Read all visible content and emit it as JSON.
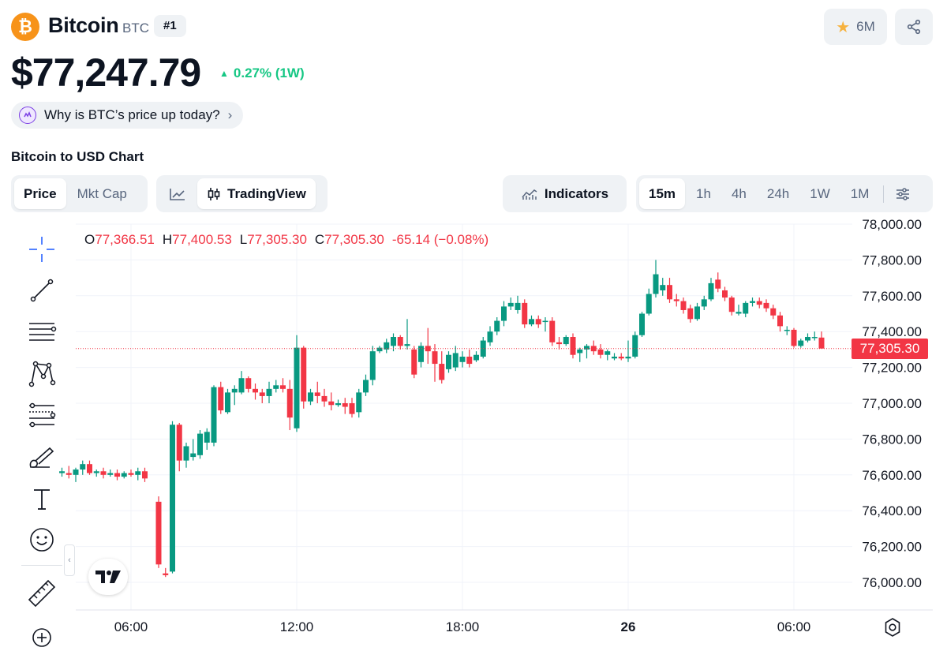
{
  "header": {
    "logo_glyph": "₿",
    "name": "Bitcoin",
    "symbol": "BTC",
    "rank": "#1",
    "watchlist_count": "6M",
    "price": "$77,247.79",
    "change": "0.27% (1W)",
    "why_label": "Why is BTC’s price up today?",
    "chart_heading": "Bitcoin to USD Chart"
  },
  "tabs": {
    "price": "Price",
    "mkt_cap": "Mkt Cap",
    "tradingview": "TradingView",
    "indicators": "Indicators",
    "ranges": [
      "15m",
      "1h",
      "4h",
      "24h",
      "1W",
      "1M"
    ],
    "active_range": "15m"
  },
  "tools": [
    "crosshair-icon",
    "trend-line-icon",
    "fib-lines-icon",
    "pattern-icon",
    "forecast-icon",
    "brush-icon",
    "text-icon",
    "emoji-icon",
    "ruler-icon",
    "zoom-in-icon"
  ],
  "ohlc": {
    "o_label": "O",
    "o": "77,366.51",
    "h_label": "H",
    "h": "77,400.53",
    "l_label": "L",
    "l": "77,305.30",
    "c_label": "C",
    "c": "77,305.30",
    "delta": "-65.14 (−0.08%)"
  },
  "last_price_tag": "77,305.30",
  "colors": {
    "up": "#089981",
    "down": "#f23645",
    "accent": "#16c784",
    "brand": "#f7931a"
  },
  "chart_data": {
    "type": "candlestick",
    "interval": "15m",
    "ylim": [
      75800,
      78000
    ],
    "y_ticks": [
      78000,
      77800,
      77600,
      77400,
      77200,
      77000,
      76800,
      76600,
      76400,
      76200,
      76000
    ],
    "y_tick_labels": [
      "78,000.00",
      "77,800.00",
      "77,600.00",
      "77,400.00",
      "77,200.00",
      "77,000.00",
      "76,800.00",
      "76,600.00",
      "76,400.00",
      "76,200.00",
      "76,000.00"
    ],
    "x_ticks": [
      "06:00",
      "12:00",
      "18:00",
      "26",
      "06:00"
    ],
    "x_tick_hours": [
      6,
      12,
      18,
      24,
      30
    ],
    "x_tick_bold": [
      false,
      false,
      false,
      true,
      false
    ],
    "grid": true,
    "last_price": 77305.3,
    "candles": [
      [
        3.5,
        76610,
        76640,
        76590,
        76620
      ],
      [
        3.75,
        76610,
        76650,
        76580,
        76600
      ],
      [
        4.0,
        76600,
        76640,
        76560,
        76630
      ],
      [
        4.25,
        76630,
        76680,
        76600,
        76660
      ],
      [
        4.5,
        76660,
        76680,
        76600,
        76610
      ],
      [
        4.75,
        76610,
        76630,
        76590,
        76620
      ],
      [
        5.0,
        76620,
        76640,
        76580,
        76600
      ],
      [
        5.25,
        76600,
        76630,
        76590,
        76610
      ],
      [
        5.5,
        76610,
        76630,
        76570,
        76590
      ],
      [
        5.75,
        76590,
        76620,
        76580,
        76610
      ],
      [
        6.0,
        76610,
        76630,
        76590,
        76600
      ],
      [
        6.25,
        76600,
        76640,
        76570,
        76620
      ],
      [
        6.5,
        76620,
        76640,
        76560,
        76580
      ],
      [
        7.0,
        76450,
        76480,
        76080,
        76100
      ],
      [
        7.25,
        76050,
        76080,
        76030,
        76040
      ],
      [
        7.5,
        76060,
        76900,
        76050,
        76880
      ],
      [
        7.75,
        76880,
        76890,
        76620,
        76680
      ],
      [
        8.0,
        76680,
        76780,
        76640,
        76760
      ],
      [
        8.25,
        76700,
        76800,
        76680,
        76720
      ],
      [
        8.5,
        76710,
        76850,
        76690,
        76830
      ],
      [
        8.75,
        76780,
        76860,
        76740,
        76840
      ],
      [
        9.0,
        76780,
        77100,
        76760,
        77090
      ],
      [
        9.25,
        77090,
        77120,
        76940,
        76960
      ],
      [
        9.5,
        76950,
        77080,
        76940,
        77060
      ],
      [
        9.75,
        77060,
        77100,
        76990,
        77080
      ],
      [
        10.0,
        77060,
        77180,
        77050,
        77140
      ],
      [
        10.25,
        77140,
        77150,
        77060,
        77080
      ],
      [
        10.5,
        77080,
        77110,
        77020,
        77060
      ],
      [
        10.75,
        77060,
        77080,
        77000,
        77040
      ],
      [
        11.0,
        77040,
        77120,
        77000,
        77080
      ],
      [
        11.25,
        77080,
        77130,
        77060,
        77100
      ],
      [
        11.5,
        77100,
        77140,
        77060,
        77080
      ],
      [
        11.75,
        77080,
        77130,
        76850,
        76920
      ],
      [
        12.0,
        76860,
        77380,
        76840,
        77310
      ],
      [
        12.25,
        77310,
        77320,
        76970,
        77010
      ],
      [
        12.5,
        77010,
        77080,
        76990,
        77060
      ],
      [
        12.75,
        77060,
        77120,
        77000,
        77040
      ],
      [
        13.0,
        77040,
        77080,
        76980,
        77010
      ],
      [
        13.25,
        77010,
        77060,
        76960,
        76990
      ],
      [
        13.5,
        76990,
        77020,
        76980,
        77000
      ],
      [
        13.75,
        77000,
        77030,
        76940,
        76980
      ],
      [
        14.0,
        77000,
        77030,
        76920,
        76940
      ],
      [
        14.25,
        76950,
        77080,
        76920,
        77060
      ],
      [
        14.5,
        77060,
        77160,
        77040,
        77130
      ],
      [
        14.75,
        77130,
        77320,
        77100,
        77290
      ],
      [
        15.0,
        77290,
        77320,
        77280,
        77310
      ],
      [
        15.25,
        77300,
        77360,
        77280,
        77340
      ],
      [
        15.5,
        77320,
        77390,
        77290,
        77370
      ],
      [
        15.75,
        77370,
        77380,
        77300,
        77320
      ],
      [
        16.0,
        77320,
        77470,
        77300,
        77330
      ],
      [
        16.25,
        77300,
        77320,
        77140,
        77160
      ],
      [
        16.5,
        77230,
        77340,
        77200,
        77320
      ],
      [
        16.75,
        77320,
        77420,
        77220,
        77290
      ],
      [
        17.0,
        77290,
        77330,
        77120,
        77220
      ],
      [
        17.25,
        77220,
        77290,
        77110,
        77130
      ],
      [
        17.5,
        77190,
        77290,
        77170,
        77270
      ],
      [
        17.75,
        77200,
        77320,
        77180,
        77280
      ],
      [
        18.0,
        77230,
        77290,
        77200,
        77260
      ],
      [
        18.25,
        77260,
        77300,
        77200,
        77220
      ],
      [
        18.5,
        77240,
        77290,
        77230,
        77270
      ],
      [
        18.75,
        77260,
        77370,
        77250,
        77350
      ],
      [
        19.0,
        77340,
        77430,
        77320,
        77400
      ],
      [
        19.25,
        77400,
        77480,
        77380,
        77460
      ],
      [
        19.5,
        77460,
        77570,
        77430,
        77540
      ],
      [
        19.75,
        77540,
        77590,
        77520,
        77560
      ],
      [
        20.0,
        77520,
        77600,
        77500,
        77560
      ],
      [
        20.25,
        77560,
        77580,
        77420,
        77440
      ],
      [
        20.5,
        77440,
        77490,
        77430,
        77470
      ],
      [
        20.75,
        77470,
        77490,
        77420,
        77440
      ],
      [
        21.0,
        77460,
        77480,
        77400,
        77460
      ],
      [
        21.25,
        77460,
        77480,
        77320,
        77340
      ],
      [
        21.5,
        77340,
        77370,
        77300,
        77330
      ],
      [
        21.75,
        77330,
        77380,
        77320,
        77370
      ],
      [
        22.0,
        77370,
        77390,
        77250,
        77270
      ],
      [
        22.25,
        77280,
        77310,
        77230,
        77300
      ],
      [
        22.5,
        77300,
        77330,
        77250,
        77320
      ],
      [
        22.75,
        77320,
        77350,
        77270,
        77290
      ],
      [
        23.0,
        77300,
        77330,
        77250,
        77270
      ],
      [
        23.25,
        77270,
        77300,
        77240,
        77290
      ],
      [
        23.5,
        77250,
        77280,
        77240,
        77260
      ],
      [
        23.75,
        77260,
        77280,
        77240,
        77250
      ],
      [
        24.0,
        77250,
        77350,
        77230,
        77260
      ],
      [
        24.25,
        77260,
        77400,
        77250,
        77380
      ],
      [
        24.5,
        77380,
        77510,
        77370,
        77500
      ],
      [
        24.75,
        77500,
        77640,
        77490,
        77610
      ],
      [
        25.0,
        77610,
        77800,
        77590,
        77720
      ],
      [
        25.25,
        77630,
        77700,
        77600,
        77660
      ],
      [
        25.5,
        77660,
        77700,
        77560,
        77580
      ],
      [
        25.75,
        77580,
        77610,
        77540,
        77570
      ],
      [
        26.0,
        77570,
        77590,
        77500,
        77520
      ],
      [
        26.25,
        77530,
        77550,
        77450,
        77470
      ],
      [
        26.5,
        77470,
        77560,
        77460,
        77540
      ],
      [
        26.75,
        77540,
        77600,
        77520,
        77580
      ],
      [
        27.0,
        77580,
        77700,
        77570,
        77670
      ],
      [
        27.25,
        77690,
        77730,
        77620,
        77640
      ],
      [
        27.5,
        77630,
        77650,
        77570,
        77590
      ],
      [
        27.75,
        77590,
        77600,
        77490,
        77510
      ],
      [
        28.0,
        77500,
        77550,
        77490,
        77510
      ],
      [
        28.25,
        77500,
        77570,
        77480,
        77560
      ],
      [
        28.5,
        77560,
        77590,
        77540,
        77570
      ],
      [
        28.75,
        77570,
        77590,
        77530,
        77550
      ],
      [
        29.0,
        77560,
        77580,
        77510,
        77530
      ],
      [
        29.25,
        77530,
        77550,
        77470,
        77490
      ],
      [
        29.5,
        77490,
        77510,
        77400,
        77430
      ],
      [
        29.75,
        77410,
        77430,
        77380,
        77410
      ],
      [
        30.0,
        77410,
        77420,
        77310,
        77320
      ],
      [
        30.25,
        77320,
        77360,
        77310,
        77350
      ],
      [
        30.5,
        77350,
        77390,
        77340,
        77370
      ],
      [
        30.75,
        77370,
        77400,
        77350,
        77370
      ],
      [
        31.0,
        77366.51,
        77400.53,
        77305.3,
        77305.3
      ]
    ]
  }
}
